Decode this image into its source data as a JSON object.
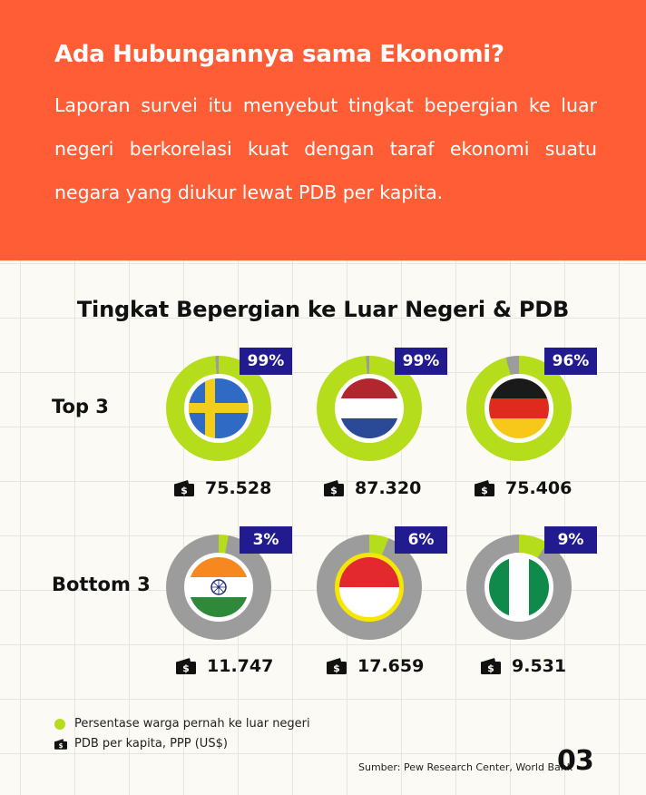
{
  "header": {
    "title": "Ada Hubungannya sama Ekonomi?",
    "body": "Laporan survei itu menyebut tingkat bepergian ke luar negeri berkorelasi kuat dengan taraf ekonomi suatu negara yang diukur lewat PDB per kapita."
  },
  "chart_data": {
    "type": "pie",
    "title": "Tingkat Bepergian ke Luar Negeri & PDB",
    "groups": [
      {
        "label": "Top 3",
        "countries": [
          {
            "flag": "sweden-flag",
            "percent": 99,
            "percent_label": "99%",
            "gdp": "75.528"
          },
          {
            "flag": "netherlands-flag",
            "percent": 99,
            "percent_label": "99%",
            "gdp": "87.320"
          },
          {
            "flag": "germany-flag",
            "percent": 96,
            "percent_label": "96%",
            "gdp": "75.406"
          }
        ]
      },
      {
        "label": "Bottom 3",
        "countries": [
          {
            "flag": "india-flag",
            "percent": 3,
            "percent_label": "3%",
            "gdp": "11.747"
          },
          {
            "flag": "indonesia-flag",
            "percent": 6,
            "percent_label": "6%",
            "gdp": "17.659"
          },
          {
            "flag": "nigeria-flag",
            "percent": 9,
            "percent_label": "9%",
            "gdp": "9.531"
          }
        ]
      }
    ],
    "legend": [
      {
        "icon": "green-dot",
        "label": "Persentase warga pernah ke luar negeri"
      },
      {
        "icon": "wallet-icon",
        "label": "PDB per kapita, PPP (US$)"
      }
    ]
  },
  "source": "Sumber: Pew Research Center, World Bank",
  "page_number": "03",
  "colors": {
    "header_bg": "#fe5d36",
    "filled": "#b6dd1c",
    "remaining": "#9c9c9c",
    "badge": "#221a8f"
  }
}
